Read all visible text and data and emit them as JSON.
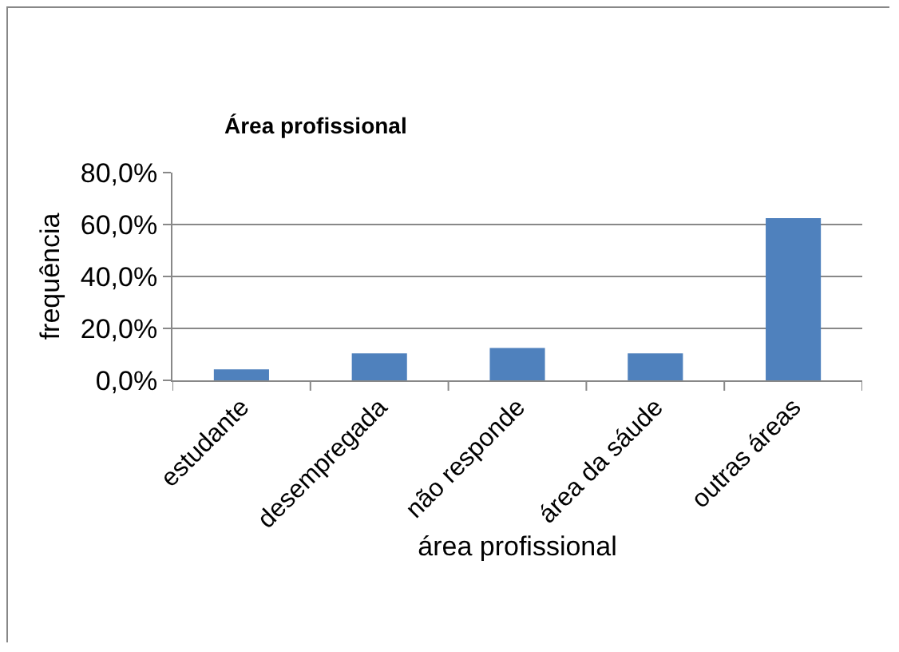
{
  "chart_data": {
    "type": "bar",
    "title": "Área profissional",
    "xlabel": "área profissional",
    "ylabel": "frequência",
    "categories": [
      "estudante",
      "desempregada",
      "não responde",
      "área da sáude",
      "outras áreas"
    ],
    "values": [
      4.2,
      10.4,
      12.5,
      10.4,
      62.5
    ],
    "color": "#4f81bd",
    "ylim": [
      0,
      80
    ],
    "yticks": [
      {
        "value": 0,
        "label": "0,0%"
      },
      {
        "value": 20,
        "label": "20,0%"
      },
      {
        "value": 40,
        "label": "40,0%"
      },
      {
        "value": 60,
        "label": "60,0%"
      },
      {
        "value": 80,
        "label": "80,0%"
      }
    ],
    "grid": "y",
    "legend": false
  }
}
